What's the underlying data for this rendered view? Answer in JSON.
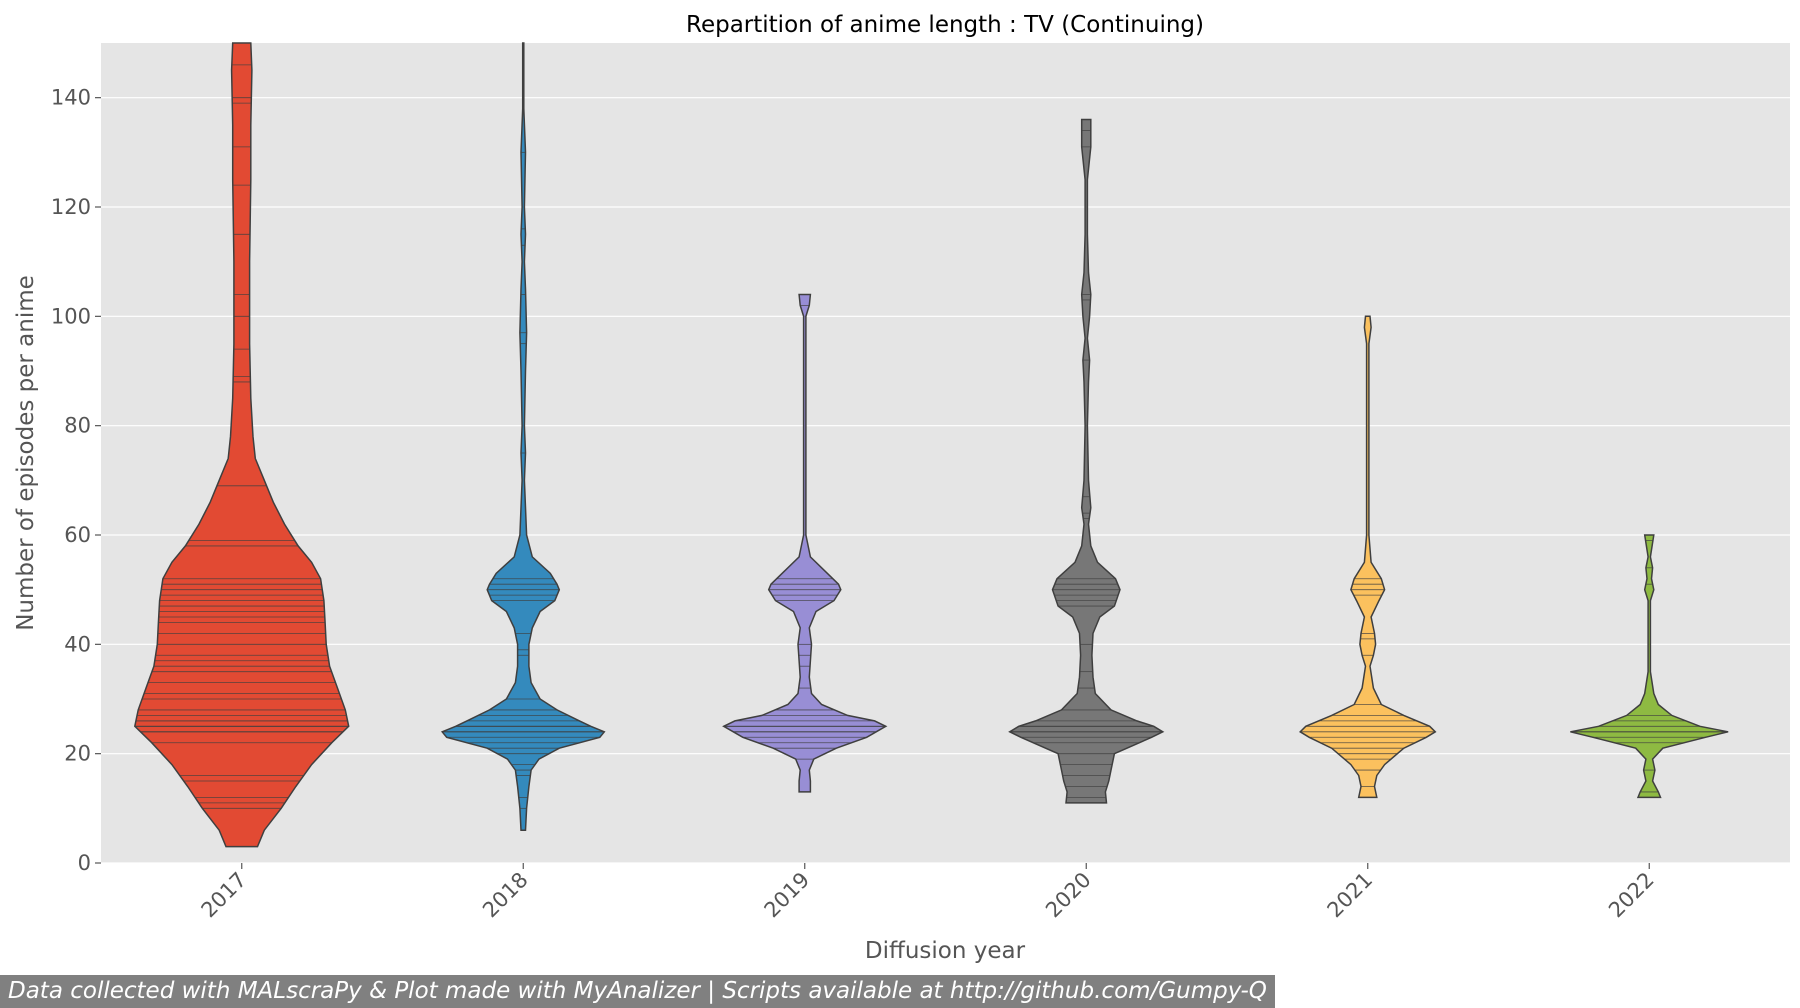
{
  "chart_data": {
    "type": "violin",
    "title": "Repartition of anime length : TV (Continuing)",
    "xlabel": "Diffusion year",
    "ylabel": "Number of episodes per anime",
    "ylim": [
      0,
      150
    ],
    "yticks": [
      0,
      20,
      40,
      60,
      80,
      100,
      120,
      140
    ],
    "grid": true,
    "inner": "stick",
    "categories": [
      "2017",
      "2018",
      "2019",
      "2020",
      "2021",
      "2022"
    ],
    "colors": [
      "#E24A33",
      "#348ABD",
      "#988ED5",
      "#777777",
      "#FBC15E",
      "#8EBA42"
    ],
    "violins": [
      {
        "year": "2017",
        "profile": [
          [
            3,
            0.14
          ],
          [
            6,
            0.2
          ],
          [
            10,
            0.35
          ],
          [
            14,
            0.48
          ],
          [
            18,
            0.62
          ],
          [
            22,
            0.8
          ],
          [
            25,
            0.95
          ],
          [
            28,
            0.92
          ],
          [
            32,
            0.85
          ],
          [
            36,
            0.78
          ],
          [
            40,
            0.75
          ],
          [
            44,
            0.74
          ],
          [
            48,
            0.73
          ],
          [
            52,
            0.7
          ],
          [
            55,
            0.62
          ],
          [
            58,
            0.5
          ],
          [
            62,
            0.38
          ],
          [
            66,
            0.28
          ],
          [
            70,
            0.2
          ],
          [
            74,
            0.12
          ],
          [
            78,
            0.1
          ],
          [
            85,
            0.08
          ],
          [
            95,
            0.07
          ],
          [
            110,
            0.07
          ],
          [
            125,
            0.08
          ],
          [
            135,
            0.08
          ],
          [
            145,
            0.09
          ],
          [
            150,
            0.08
          ]
        ],
        "observations": [
          3,
          10,
          11,
          12,
          15,
          16,
          22,
          24,
          24,
          25,
          25,
          26,
          26,
          27,
          28,
          30,
          31,
          33,
          35,
          36,
          37,
          38,
          40,
          42,
          44,
          45,
          46,
          47,
          48,
          49,
          50,
          51,
          52,
          58,
          59,
          69,
          88,
          89,
          94,
          100,
          104,
          115,
          124,
          131,
          139,
          140,
          146
        ]
      },
      {
        "year": "2018",
        "profile": [
          [
            6,
            0.02
          ],
          [
            10,
            0.03
          ],
          [
            14,
            0.05
          ],
          [
            17,
            0.07
          ],
          [
            19,
            0.14
          ],
          [
            21,
            0.32
          ],
          [
            23,
            0.68
          ],
          [
            24,
            0.72
          ],
          [
            25,
            0.6
          ],
          [
            26,
            0.5
          ],
          [
            28,
            0.3
          ],
          [
            30,
            0.15
          ],
          [
            33,
            0.07
          ],
          [
            36,
            0.05
          ],
          [
            40,
            0.05
          ],
          [
            43,
            0.08
          ],
          [
            46,
            0.15
          ],
          [
            48,
            0.28
          ],
          [
            50,
            0.32
          ],
          [
            51,
            0.3
          ],
          [
            53,
            0.24
          ],
          [
            56,
            0.08
          ],
          [
            60,
            0.03
          ],
          [
            70,
            0.01
          ],
          [
            75,
            0.02
          ],
          [
            80,
            0.01
          ],
          [
            90,
            0.02
          ],
          [
            97,
            0.03
          ],
          [
            105,
            0.02
          ],
          [
            110,
            0.01
          ],
          [
            115,
            0.02
          ],
          [
            120,
            0.01
          ],
          [
            130,
            0.02
          ],
          [
            138,
            0.005
          ],
          [
            150,
            0.005
          ]
        ],
        "observations": [
          6,
          10,
          12,
          16,
          17,
          18,
          20,
          21,
          22,
          23,
          24,
          24,
          25,
          25,
          26,
          27,
          28,
          30,
          38,
          39,
          42,
          48,
          49,
          50,
          51,
          52,
          75,
          95,
          97,
          104,
          113,
          116,
          130
        ]
      },
      {
        "year": "2019",
        "profile": [
          [
            13,
            0.05
          ],
          [
            15,
            0.05
          ],
          [
            17,
            0.04
          ],
          [
            19,
            0.08
          ],
          [
            21,
            0.28
          ],
          [
            23,
            0.55
          ],
          [
            25,
            0.72
          ],
          [
            26,
            0.62
          ],
          [
            27,
            0.38
          ],
          [
            29,
            0.15
          ],
          [
            31,
            0.06
          ],
          [
            34,
            0.04
          ],
          [
            37,
            0.05
          ],
          [
            40,
            0.06
          ],
          [
            43,
            0.04
          ],
          [
            46,
            0.1
          ],
          [
            48,
            0.26
          ],
          [
            50,
            0.32
          ],
          [
            51,
            0.3
          ],
          [
            53,
            0.2
          ],
          [
            56,
            0.05
          ],
          [
            60,
            0.01
          ],
          [
            80,
            0.01
          ],
          [
            100,
            0.01
          ],
          [
            102,
            0.04
          ],
          [
            104,
            0.05
          ]
        ],
        "observations": [
          13,
          19,
          21,
          22,
          23,
          24,
          24,
          25,
          25,
          26,
          27,
          28,
          32,
          36,
          38,
          40,
          48,
          49,
          50,
          51,
          52,
          102
        ]
      },
      {
        "year": "2020",
        "profile": [
          [
            11,
            0.18
          ],
          [
            13,
            0.17
          ],
          [
            15,
            0.2
          ],
          [
            17,
            0.22
          ],
          [
            20,
            0.25
          ],
          [
            23,
            0.58
          ],
          [
            24,
            0.68
          ],
          [
            25,
            0.6
          ],
          [
            26,
            0.45
          ],
          [
            28,
            0.22
          ],
          [
            31,
            0.08
          ],
          [
            34,
            0.06
          ],
          [
            38,
            0.05
          ],
          [
            42,
            0.06
          ],
          [
            45,
            0.12
          ],
          [
            47,
            0.25
          ],
          [
            50,
            0.3
          ],
          [
            52,
            0.26
          ],
          [
            55,
            0.1
          ],
          [
            58,
            0.04
          ],
          [
            62,
            0.02
          ],
          [
            65,
            0.04
          ],
          [
            70,
            0.02
          ],
          [
            80,
            0.01
          ],
          [
            88,
            0.02
          ],
          [
            92,
            0.03
          ],
          [
            96,
            0.01
          ],
          [
            100,
            0.03
          ],
          [
            104,
            0.04
          ],
          [
            108,
            0.02
          ],
          [
            115,
            0.01
          ],
          [
            125,
            0.01
          ],
          [
            131,
            0.04
          ],
          [
            136,
            0.04
          ]
        ],
        "observations": [
          11,
          12,
          14,
          16,
          18,
          20,
          22,
          23,
          24,
          24,
          25,
          25,
          26,
          28,
          32,
          35,
          40,
          47,
          48,
          49,
          50,
          51,
          52,
          63,
          64,
          67,
          92,
          103,
          104,
          131,
          134
        ]
      },
      {
        "year": "2021",
        "profile": [
          [
            12,
            0.08
          ],
          [
            14,
            0.06
          ],
          [
            16,
            0.08
          ],
          [
            18,
            0.15
          ],
          [
            21,
            0.32
          ],
          [
            23,
            0.52
          ],
          [
            24,
            0.6
          ],
          [
            25,
            0.55
          ],
          [
            27,
            0.32
          ],
          [
            29,
            0.12
          ],
          [
            32,
            0.05
          ],
          [
            36,
            0.02
          ],
          [
            38,
            0.05
          ],
          [
            40,
            0.07
          ],
          [
            42,
            0.06
          ],
          [
            45,
            0.03
          ],
          [
            48,
            0.1
          ],
          [
            50,
            0.15
          ],
          [
            52,
            0.12
          ],
          [
            55,
            0.03
          ],
          [
            60,
            0.01
          ],
          [
            95,
            0.01
          ],
          [
            98,
            0.03
          ],
          [
            100,
            0.02
          ]
        ],
        "observations": [
          12,
          14,
          17,
          19,
          20,
          21,
          22,
          23,
          24,
          25,
          26,
          27,
          29,
          38,
          41,
          42,
          49,
          50,
          51,
          52
        ]
      },
      {
        "year": "2022",
        "profile": [
          [
            12,
            0.1
          ],
          [
            13,
            0.08
          ],
          [
            15,
            0.03
          ],
          [
            17,
            0.05
          ],
          [
            19,
            0.03
          ],
          [
            21,
            0.12
          ],
          [
            23,
            0.5
          ],
          [
            24,
            0.7
          ],
          [
            25,
            0.45
          ],
          [
            27,
            0.2
          ],
          [
            29,
            0.08
          ],
          [
            31,
            0.04
          ],
          [
            35,
            0.01
          ],
          [
            48,
            0.01
          ],
          [
            50,
            0.04
          ],
          [
            52,
            0.02
          ],
          [
            54,
            0.03
          ],
          [
            56,
            0.01
          ],
          [
            60,
            0.04
          ]
        ],
        "observations": [
          12,
          13,
          17,
          22,
          23,
          24,
          24,
          25,
          26,
          27,
          51,
          54,
          59
        ]
      }
    ]
  },
  "footer": {
    "text": "Data collected with MALscraPy & Plot made with MyAnalizer | Scripts available at http://github.com/Gumpy-Q"
  }
}
